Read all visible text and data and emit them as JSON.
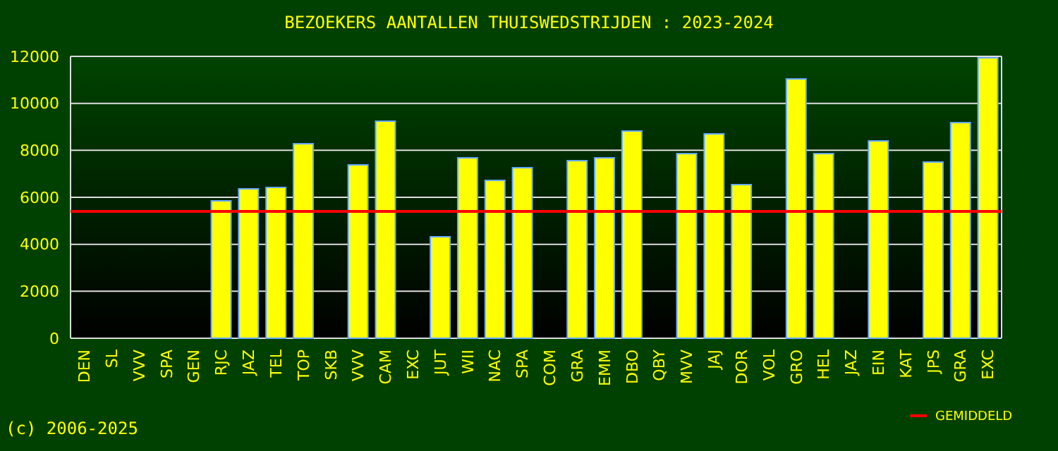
{
  "chart_data": {
    "type": "bar",
    "title": "BEZOEKERS AANTALLEN THUISWEDSTRIJDEN : 2023-2024",
    "categories": [
      "DEN",
      "SL",
      "VVV",
      "SPA",
      "GEN",
      "RJC",
      "JAZ",
      "TEL",
      "TOP",
      "SKB",
      "VVV",
      "CAM",
      "EXC",
      "JUT",
      "WII",
      "NAC",
      "SPA",
      "COM",
      "GRA",
      "EMM",
      "DBO",
      "QBY",
      "MVV",
      "JAJ",
      "DOR",
      "VOL",
      "GRO",
      "HEL",
      "JAZ",
      "EIN",
      "KAT",
      "JPS",
      "GRA",
      "EXC"
    ],
    "values": [
      null,
      null,
      null,
      null,
      null,
      5850,
      6360,
      6420,
      8280,
      null,
      7380,
      9240,
      null,
      4320,
      7680,
      6720,
      7260,
      null,
      7560,
      7680,
      8820,
      null,
      7860,
      8700,
      6540,
      null,
      11040,
      7860,
      null,
      8400,
      null,
      7500,
      9180,
      11940
    ],
    "color": "#ffff00",
    "ylim": [
      0,
      12000
    ],
    "yticks": [
      0,
      2000,
      4000,
      6000,
      8000,
      10000,
      12000
    ],
    "grid": "y",
    "ref_lines": [
      {
        "axis": "y",
        "value": 5400,
        "label": "GEMIDDELD",
        "color": "#ff0000"
      }
    ],
    "legend": "bottom right",
    "annotations": [
      "(c) 2006-2025"
    ]
  }
}
